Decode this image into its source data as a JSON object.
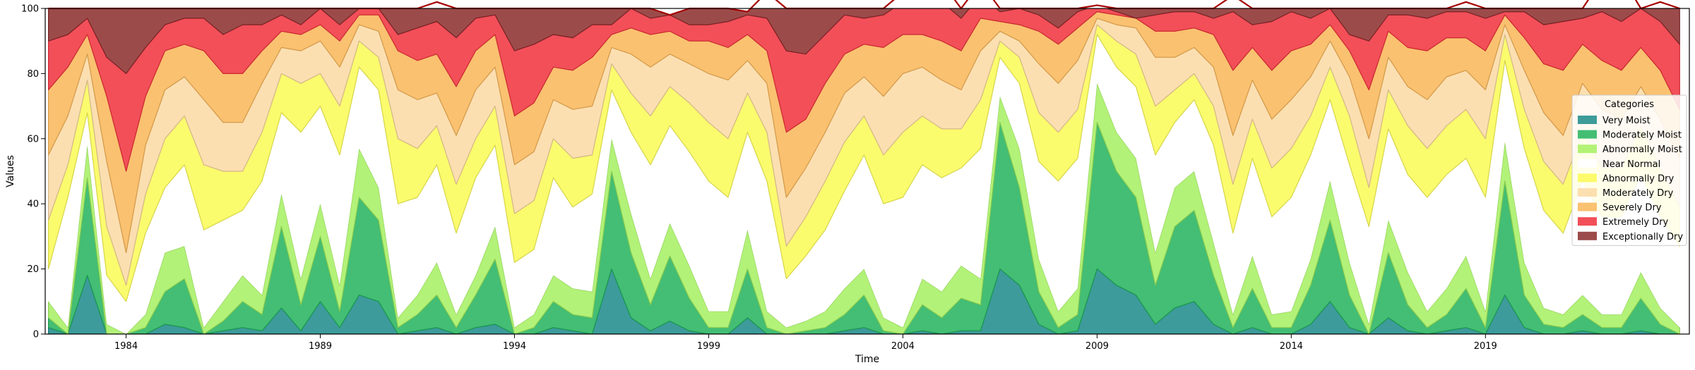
{
  "chart_data": {
    "type": "area",
    "stacked": true,
    "title": "",
    "xlabel": "Time",
    "ylabel": "Values",
    "xlim": [
      "1981-12",
      "2024-04"
    ],
    "ylim": [
      0,
      100
    ],
    "x_ticks": [
      "1984",
      "1989",
      "1994",
      "1999",
      "2004",
      "2009",
      "2014",
      "2019"
    ],
    "y_ticks": [
      0,
      20,
      40,
      60,
      80,
      100
    ],
    "grid": false,
    "legend": {
      "title": "Categories",
      "placement": "right"
    },
    "x": [
      "1982-01",
      "1982-07",
      "1983-01",
      "1983-07",
      "1984-01",
      "1984-07",
      "1985-01",
      "1985-07",
      "1986-01",
      "1986-07",
      "1987-01",
      "1987-07",
      "1988-01",
      "1988-07",
      "1989-01",
      "1989-07",
      "1990-01",
      "1990-07",
      "1991-01",
      "1991-07",
      "1992-01",
      "1992-07",
      "1993-01",
      "1993-07",
      "1994-01",
      "1994-07",
      "1995-01",
      "1995-07",
      "1996-01",
      "1996-07",
      "1997-01",
      "1997-07",
      "1998-01",
      "1998-07",
      "1999-01",
      "1999-07",
      "2000-01",
      "2000-07",
      "2001-01",
      "2001-07",
      "2002-01",
      "2002-07",
      "2003-01",
      "2003-07",
      "2004-01",
      "2004-07",
      "2005-01",
      "2005-07",
      "2006-01",
      "2006-07",
      "2007-01",
      "2007-07",
      "2008-01",
      "2008-07",
      "2009-01",
      "2009-07",
      "2010-01",
      "2010-07",
      "2011-01",
      "2011-07",
      "2012-01",
      "2012-07",
      "2013-01",
      "2013-07",
      "2014-01",
      "2014-07",
      "2015-01",
      "2015-07",
      "2016-01",
      "2016-07",
      "2017-01",
      "2017-07",
      "2018-01",
      "2018-07",
      "2019-01",
      "2019-07",
      "2020-01",
      "2020-07",
      "2021-01",
      "2021-07",
      "2022-01",
      "2022-07",
      "2023-01",
      "2023-07",
      "2024-01"
    ],
    "series": [
      {
        "name": "Very Moist",
        "color": "#1b8a8a",
        "values": [
          2,
          0,
          18,
          0,
          0,
          0,
          3,
          2,
          0,
          1,
          2,
          1,
          8,
          1,
          10,
          2,
          12,
          10,
          0,
          1,
          2,
          0,
          2,
          3,
          0,
          0,
          2,
          1,
          0,
          20,
          5,
          1,
          4,
          1,
          0,
          0,
          5,
          0,
          0,
          0,
          0,
          1,
          2,
          0,
          0,
          1,
          0,
          1,
          1,
          20,
          15,
          3,
          0,
          1,
          20,
          15,
          12,
          3,
          8,
          10,
          3,
          0,
          2,
          0,
          0,
          3,
          10,
          2,
          0,
          5,
          1,
          0,
          1,
          2,
          0,
          12,
          2,
          0,
          0,
          1,
          0,
          0,
          1,
          0,
          0
        ]
      },
      {
        "name": "Moderately Moist",
        "color": "#22b35c",
        "values": [
          3,
          0,
          30,
          0,
          0,
          2,
          10,
          15,
          0,
          3,
          8,
          5,
          25,
          8,
          20,
          5,
          30,
          25,
          2,
          5,
          10,
          2,
          10,
          20,
          0,
          2,
          8,
          5,
          5,
          30,
          20,
          8,
          20,
          10,
          2,
          2,
          15,
          2,
          0,
          1,
          2,
          5,
          10,
          1,
          0,
          8,
          5,
          10,
          8,
          45,
          30,
          10,
          2,
          5,
          45,
          35,
          30,
          12,
          25,
          28,
          15,
          2,
          12,
          2,
          2,
          12,
          25,
          10,
          0,
          20,
          8,
          2,
          5,
          12,
          2,
          35,
          10,
          3,
          2,
          5,
          2,
          2,
          10,
          3,
          0
        ]
      },
      {
        "name": "Abnormally Moist",
        "color": "#a5f060",
        "values": [
          5,
          2,
          10,
          3,
          0,
          4,
          12,
          10,
          2,
          6,
          8,
          6,
          10,
          8,
          10,
          8,
          15,
          10,
          3,
          6,
          10,
          4,
          6,
          10,
          2,
          4,
          8,
          8,
          8,
          10,
          12,
          8,
          10,
          10,
          5,
          5,
          12,
          5,
          2,
          3,
          5,
          8,
          8,
          4,
          2,
          8,
          8,
          10,
          8,
          8,
          12,
          10,
          5,
          8,
          12,
          12,
          12,
          10,
          12,
          12,
          10,
          4,
          10,
          4,
          5,
          8,
          12,
          10,
          3,
          10,
          10,
          5,
          8,
          10,
          5,
          12,
          10,
          5,
          4,
          6,
          4,
          4,
          8,
          5,
          2
        ]
      },
      {
        "name": "Near Normal",
        "color": "#ffffff",
        "values": [
          10,
          40,
          10,
          15,
          10,
          25,
          20,
          25,
          30,
          25,
          20,
          35,
          25,
          45,
          30,
          40,
          25,
          30,
          35,
          30,
          30,
          25,
          30,
          25,
          20,
          20,
          30,
          25,
          30,
          15,
          25,
          35,
          30,
          35,
          40,
          35,
          30,
          40,
          15,
          20,
          25,
          30,
          35,
          35,
          40,
          35,
          35,
          30,
          40,
          12,
          20,
          30,
          40,
          40,
          15,
          20,
          22,
          30,
          20,
          22,
          30,
          25,
          30,
          30,
          35,
          32,
          25,
          30,
          30,
          28,
          30,
          35,
          35,
          30,
          35,
          25,
          35,
          30,
          25,
          35,
          30,
          30,
          30,
          28,
          25
        ]
      },
      {
        "name": "Abnormally Dry",
        "color": "#fafa55",
        "values": [
          15,
          10,
          10,
          15,
          5,
          12,
          15,
          15,
          20,
          15,
          12,
          15,
          12,
          15,
          10,
          15,
          8,
          10,
          20,
          15,
          12,
          15,
          12,
          12,
          15,
          15,
          12,
          15,
          12,
          8,
          12,
          15,
          12,
          15,
          18,
          18,
          12,
          15,
          10,
          12,
          15,
          15,
          12,
          15,
          20,
          15,
          15,
          12,
          15,
          5,
          8,
          15,
          15,
          15,
          3,
          8,
          10,
          15,
          10,
          8,
          12,
          15,
          12,
          15,
          15,
          12,
          10,
          15,
          12,
          12,
          15,
          15,
          15,
          15,
          18,
          8,
          12,
          15,
          15,
          15,
          15,
          15,
          15,
          15,
          12
        ]
      },
      {
        "name": "Moderately Dry",
        "color": "#fbd9a3",
        "values": [
          20,
          15,
          8,
          20,
          10,
          15,
          15,
          12,
          20,
          15,
          15,
          15,
          8,
          10,
          10,
          12,
          5,
          8,
          15,
          15,
          10,
          15,
          15,
          12,
          15,
          15,
          12,
          15,
          15,
          5,
          12,
          15,
          10,
          12,
          15,
          18,
          10,
          15,
          15,
          15,
          15,
          15,
          12,
          18,
          18,
          15,
          15,
          12,
          15,
          3,
          5,
          15,
          15,
          15,
          2,
          5,
          8,
          15,
          10,
          8,
          12,
          15,
          12,
          15,
          15,
          12,
          8,
          12,
          15,
          10,
          12,
          15,
          15,
          12,
          15,
          3,
          12,
          15,
          15,
          15,
          18,
          15,
          12,
          15,
          15
        ]
      },
      {
        "name": "Severely Dry",
        "color": "#f9b657",
        "values": [
          20,
          15,
          6,
          20,
          25,
          15,
          12,
          10,
          15,
          15,
          15,
          10,
          5,
          5,
          5,
          8,
          3,
          5,
          12,
          12,
          12,
          15,
          12,
          10,
          15,
          15,
          10,
          12,
          15,
          4,
          8,
          10,
          7,
          7,
          10,
          10,
          8,
          10,
          20,
          15,
          15,
          12,
          10,
          15,
          12,
          10,
          12,
          12,
          10,
          3,
          5,
          10,
          12,
          10,
          2,
          3,
          3,
          8,
          8,
          6,
          10,
          20,
          10,
          15,
          15,
          10,
          5,
          8,
          15,
          8,
          12,
          15,
          12,
          10,
          12,
          3,
          10,
          15,
          20,
          12,
          15,
          15,
          12,
          15,
          15
        ]
      },
      {
        "name": "Extremely Dry",
        "color": "#f0303c",
        "values": [
          15,
          10,
          5,
          12,
          30,
          15,
          8,
          8,
          10,
          12,
          15,
          8,
          5,
          3,
          5,
          5,
          2,
          2,
          5,
          10,
          10,
          15,
          10,
          6,
          20,
          18,
          10,
          10,
          10,
          3,
          6,
          5,
          5,
          5,
          5,
          8,
          6,
          10,
          25,
          20,
          15,
          12,
          8,
          10,
          10,
          10,
          12,
          10,
          7,
          3,
          5,
          5,
          5,
          5,
          2,
          1,
          0,
          5,
          6,
          5,
          5,
          18,
          7,
          15,
          12,
          8,
          5,
          5,
          15,
          5,
          10,
          10,
          8,
          8,
          10,
          1,
          8,
          12,
          15,
          8,
          15,
          15,
          12,
          15,
          20
        ]
      },
      {
        "name": "Exceptionally Dry",
        "color": "#8b2c2c",
        "values": [
          10,
          8,
          3,
          15,
          20,
          12,
          5,
          3,
          3,
          8,
          5,
          5,
          2,
          5,
          0,
          5,
          0,
          0,
          8,
          6,
          6,
          9,
          3,
          2,
          13,
          11,
          8,
          9,
          5,
          5,
          0,
          3,
          0,
          5,
          5,
          4,
          1,
          8,
          13,
          14,
          8,
          2,
          3,
          2,
          3,
          5,
          6,
          3,
          4,
          1,
          0,
          2,
          6,
          1,
          0,
          1,
          3,
          2,
          1,
          1,
          3,
          5,
          5,
          4,
          1,
          3,
          0,
          8,
          10,
          2,
          2,
          3,
          1,
          3,
          3,
          1,
          1,
          5,
          4,
          3,
          10,
          14,
          0,
          6,
          11
        ]
      }
    ]
  }
}
